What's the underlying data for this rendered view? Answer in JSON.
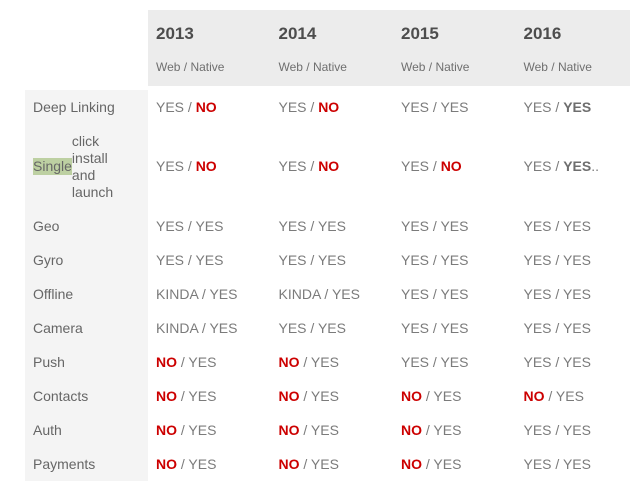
{
  "colors": {
    "header_bg": "#ececec",
    "label_column_bg": "#f4f4f4",
    "year_text": "#4d4d4d",
    "subtitle_text": "#6f6f6f",
    "label_text": "#666666",
    "value_text": "#7b7b7b",
    "bold_value_text": "#6e6e6e",
    "no_red": "#cc0000",
    "highlight_green": "#bdd0a2",
    "page_bg": "#ffffff"
  },
  "table": {
    "value_separator": " / ",
    "columns": [
      {
        "year": "2013",
        "subtitle": "Web / Native"
      },
      {
        "year": "2014",
        "subtitle": "Web / Native"
      },
      {
        "year": "2015",
        "subtitle": "Web / Native"
      },
      {
        "year": "2016",
        "subtitle": "Web / Native"
      }
    ],
    "rows": [
      {
        "label": "Deep Linking",
        "cells": [
          {
            "web": "YES",
            "web_style": "plain",
            "native": "NO",
            "native_style": "red",
            "suffix": ""
          },
          {
            "web": "YES",
            "web_style": "plain",
            "native": "NO",
            "native_style": "red",
            "suffix": ""
          },
          {
            "web": "YES",
            "web_style": "plain",
            "native": "YES",
            "native_style": "plain",
            "suffix": ""
          },
          {
            "web": "YES",
            "web_style": "plain",
            "native": "YES",
            "native_style": "bold",
            "suffix": ""
          }
        ]
      },
      {
        "label": "Single click\ninstall\nand launch",
        "highlight_word": "Single",
        "cells": [
          {
            "web": "YES",
            "web_style": "plain",
            "native": "NO",
            "native_style": "red",
            "suffix": ""
          },
          {
            "web": "YES",
            "web_style": "plain",
            "native": "NO",
            "native_style": "red",
            "suffix": ""
          },
          {
            "web": "YES",
            "web_style": "plain",
            "native": "NO",
            "native_style": "red",
            "suffix": ""
          },
          {
            "web": "YES",
            "web_style": "plain",
            "native": "YES",
            "native_style": "bold",
            "suffix": ".."
          }
        ]
      },
      {
        "label": "Geo",
        "cells": [
          {
            "web": "YES",
            "web_style": "plain",
            "native": "YES",
            "native_style": "plain",
            "suffix": ""
          },
          {
            "web": "YES",
            "web_style": "plain",
            "native": "YES",
            "native_style": "plain",
            "suffix": ""
          },
          {
            "web": "YES",
            "web_style": "plain",
            "native": "YES",
            "native_style": "plain",
            "suffix": ""
          },
          {
            "web": "YES",
            "web_style": "plain",
            "native": "YES",
            "native_style": "plain",
            "suffix": ""
          }
        ]
      },
      {
        "label": "Gyro",
        "cells": [
          {
            "web": "YES",
            "web_style": "plain",
            "native": "YES",
            "native_style": "plain",
            "suffix": ""
          },
          {
            "web": "YES",
            "web_style": "plain",
            "native": "YES",
            "native_style": "plain",
            "suffix": ""
          },
          {
            "web": "YES",
            "web_style": "plain",
            "native": "YES",
            "native_style": "plain",
            "suffix": ""
          },
          {
            "web": "YES",
            "web_style": "plain",
            "native": "YES",
            "native_style": "plain",
            "suffix": ""
          }
        ]
      },
      {
        "label": "Offline",
        "cells": [
          {
            "web": "KINDA",
            "web_style": "plain",
            "native": "YES",
            "native_style": "plain",
            "suffix": ""
          },
          {
            "web": "KINDA",
            "web_style": "plain",
            "native": "YES",
            "native_style": "plain",
            "suffix": ""
          },
          {
            "web": "YES",
            "web_style": "plain",
            "native": "YES",
            "native_style": "plain",
            "suffix": ""
          },
          {
            "web": "YES",
            "web_style": "plain",
            "native": "YES",
            "native_style": "plain",
            "suffix": ""
          }
        ]
      },
      {
        "label": "Camera",
        "cells": [
          {
            "web": "KINDA",
            "web_style": "plain",
            "native": "YES",
            "native_style": "plain",
            "suffix": ""
          },
          {
            "web": "YES",
            "web_style": "plain",
            "native": "YES",
            "native_style": "plain",
            "suffix": ""
          },
          {
            "web": "YES",
            "web_style": "plain",
            "native": "YES",
            "native_style": "plain",
            "suffix": ""
          },
          {
            "web": "YES",
            "web_style": "plain",
            "native": "YES",
            "native_style": "plain",
            "suffix": ""
          }
        ]
      },
      {
        "label": "Push",
        "cells": [
          {
            "web": "NO",
            "web_style": "red",
            "native": "YES",
            "native_style": "plain",
            "suffix": ""
          },
          {
            "web": "NO",
            "web_style": "red",
            "native": "YES",
            "native_style": "plain",
            "suffix": ""
          },
          {
            "web": "YES",
            "web_style": "plain",
            "native": "YES",
            "native_style": "plain",
            "suffix": ""
          },
          {
            "web": "YES",
            "web_style": "plain",
            "native": "YES",
            "native_style": "plain",
            "suffix": ""
          }
        ]
      },
      {
        "label": "Contacts",
        "cells": [
          {
            "web": "NO",
            "web_style": "red",
            "native": "YES",
            "native_style": "plain",
            "suffix": ""
          },
          {
            "web": "NO",
            "web_style": "red",
            "native": "YES",
            "native_style": "plain",
            "suffix": ""
          },
          {
            "web": "NO",
            "web_style": "red",
            "native": "YES",
            "native_style": "plain",
            "suffix": ""
          },
          {
            "web": "NO",
            "web_style": "red",
            "native": "YES",
            "native_style": "plain",
            "suffix": ""
          }
        ]
      },
      {
        "label": "Auth",
        "cells": [
          {
            "web": "NO",
            "web_style": "red",
            "native": "YES",
            "native_style": "plain",
            "suffix": ""
          },
          {
            "web": "NO",
            "web_style": "red",
            "native": "YES",
            "native_style": "plain",
            "suffix": ""
          },
          {
            "web": "NO",
            "web_style": "red",
            "native": "YES",
            "native_style": "plain",
            "suffix": ""
          },
          {
            "web": "YES",
            "web_style": "plain",
            "native": "YES",
            "native_style": "plain",
            "suffix": ""
          }
        ]
      },
      {
        "label": "Payments",
        "cells": [
          {
            "web": "NO",
            "web_style": "red",
            "native": "YES",
            "native_style": "plain",
            "suffix": ""
          },
          {
            "web": "NO",
            "web_style": "red",
            "native": "YES",
            "native_style": "plain",
            "suffix": ""
          },
          {
            "web": "NO",
            "web_style": "red",
            "native": "YES",
            "native_style": "plain",
            "suffix": ""
          },
          {
            "web": "YES",
            "web_style": "plain",
            "native": "YES",
            "native_style": "plain",
            "suffix": ""
          }
        ]
      }
    ]
  }
}
